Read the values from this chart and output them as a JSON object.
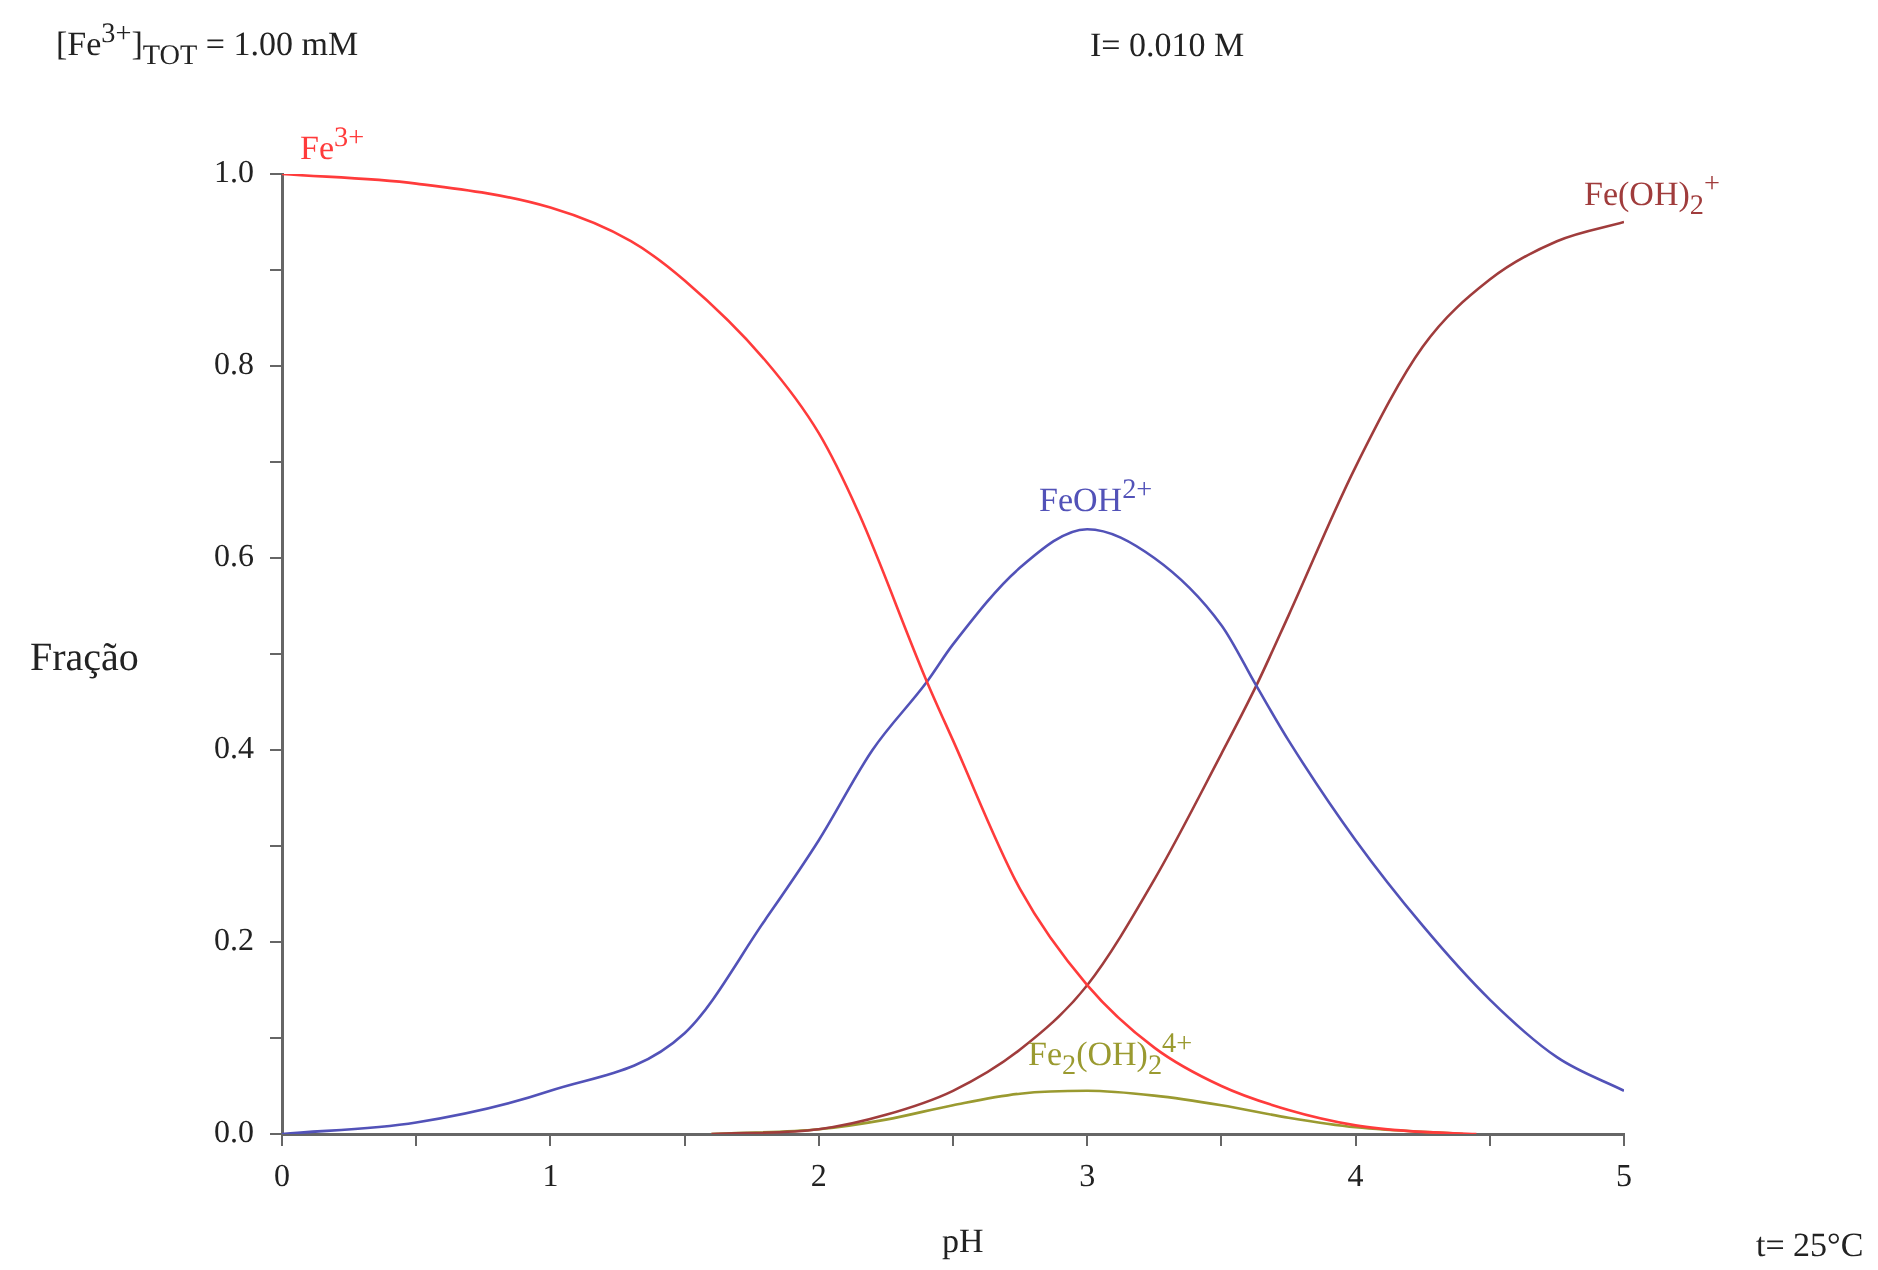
{
  "chart_data": {
    "type": "line",
    "xlabel": "pH",
    "ylabel": "Fração",
    "annotations": [
      "[Fe$^{3+}$]$_{TOT}$ =   1.00 mM",
      "I= 0.010 M",
      "t= 25°C"
    ],
    "xlim": [
      0,
      5
    ],
    "ylim": [
      0,
      1
    ],
    "xticks": [
      0,
      {
        "value": 0.5,
        "label": null
      },
      1,
      {
        "value": 1.5,
        "label": null
      },
      2,
      {
        "value": 2.5,
        "label": null
      },
      3,
      {
        "value": 3.5,
        "label": null
      },
      4,
      {
        "value": 4.5,
        "label": null
      },
      5
    ],
    "yticks": [
      {
        "value": 0,
        "label": "0.0"
      },
      {
        "value": 0.1,
        "label": null
      },
      {
        "value": 0.2,
        "label": "0.2"
      },
      {
        "value": 0.3,
        "label": null
      },
      {
        "value": 0.4,
        "label": "0.4"
      },
      {
        "value": 0.5,
        "label": null
      },
      {
        "value": 0.6,
        "label": "0.6"
      },
      {
        "value": 0.7,
        "label": null
      },
      {
        "value": 0.8,
        "label": "0.8"
      },
      {
        "value": 0.9,
        "label": null
      },
      {
        "value": 1,
        "label": "1.0"
      }
    ],
    "grid": false,
    "legend": false,
    "marker": "none",
    "line_style": "solid",
    "series": [
      {
        "name": "Fe$^{3+}$",
        "color": "#ff3b3b",
        "x": [
          0,
          0.5,
          1,
          1.3,
          1.5,
          1.8,
          2,
          2.15,
          2.4,
          2.5,
          2.75,
          3,
          3.25,
          3.5,
          3.75,
          4,
          4.2,
          4.45
        ],
        "values": [
          1,
          0.99,
          0.965,
          0.93,
          0.889,
          0.806,
          0.73,
          0.646,
          0.473,
          0.41,
          0.255,
          0.155,
          0.09,
          0.05,
          0.025,
          0.009,
          0.003,
          0
        ]
      },
      {
        "name": "FeOH$^{2+}$",
        "color": "#5252b8",
        "x": [
          0,
          0.5,
          1,
          1.5,
          1.8,
          2,
          2.2,
          2.4,
          2.5,
          2.75,
          3,
          3.25,
          3.5,
          3.63,
          3.75,
          4,
          4.25,
          4.5,
          4.75,
          5
        ],
        "values": [
          0,
          0.012,
          0.045,
          0.105,
          0.223,
          0.306,
          0.4,
          0.47,
          0.51,
          0.59,
          0.63,
          0.6,
          0.53,
          0.467,
          0.41,
          0.306,
          0.217,
          0.14,
          0.08,
          0.045
        ]
      },
      {
        "name": "Fe(OH)$_{2}$$^{+}$",
        "color": "#a03c3c",
        "x": [
          1.6,
          2,
          2.25,
          2.5,
          2.75,
          3,
          3.25,
          3.5,
          3.63,
          3.75,
          4,
          4.25,
          4.5,
          4.75,
          5
        ],
        "values": [
          0,
          0.005,
          0.02,
          0.045,
          0.088,
          0.155,
          0.265,
          0.396,
          0.467,
          0.54,
          0.695,
          0.82,
          0.89,
          0.93,
          0.95
        ]
      },
      {
        "name": "Fe$_{2}$(OH)$_{2}$$^{4+}$",
        "color": "#9a9a30",
        "x": [
          1.6,
          2,
          2.25,
          2.5,
          2.75,
          3,
          3.25,
          3.5,
          3.75,
          4,
          4.4
        ],
        "values": [
          0,
          0.005,
          0.015,
          0.03,
          0.042,
          0.045,
          0.04,
          0.03,
          0.017,
          0.007,
          0
        ]
      }
    ]
  }
}
